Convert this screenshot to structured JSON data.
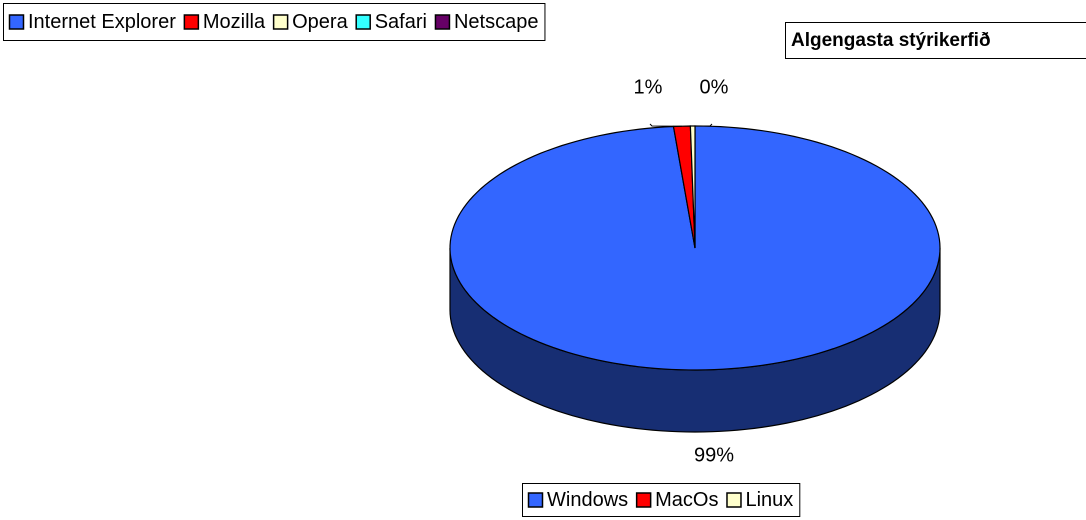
{
  "chart_data": [
    {
      "type": "pie",
      "title": "Algengasta stýrikerfið",
      "categories": [
        "Windows",
        "MacOs",
        "Linux"
      ],
      "values": [
        98.6,
        1.1,
        0.3
      ],
      "value_labels": [
        "99%",
        "1%",
        "0%"
      ],
      "colors": [
        "#3366ff",
        "#ff0000",
        "#ffffcc"
      ],
      "legend": "bottom"
    },
    {
      "type": "legend",
      "categories": [
        "Internet Explorer",
        "Mozilla",
        "Opera",
        "Safari",
        "Netscape"
      ],
      "colors": [
        "#3366ff",
        "#ff0000",
        "#ffffcc",
        "#33ffff",
        "#660066"
      ],
      "legend": "top"
    }
  ]
}
